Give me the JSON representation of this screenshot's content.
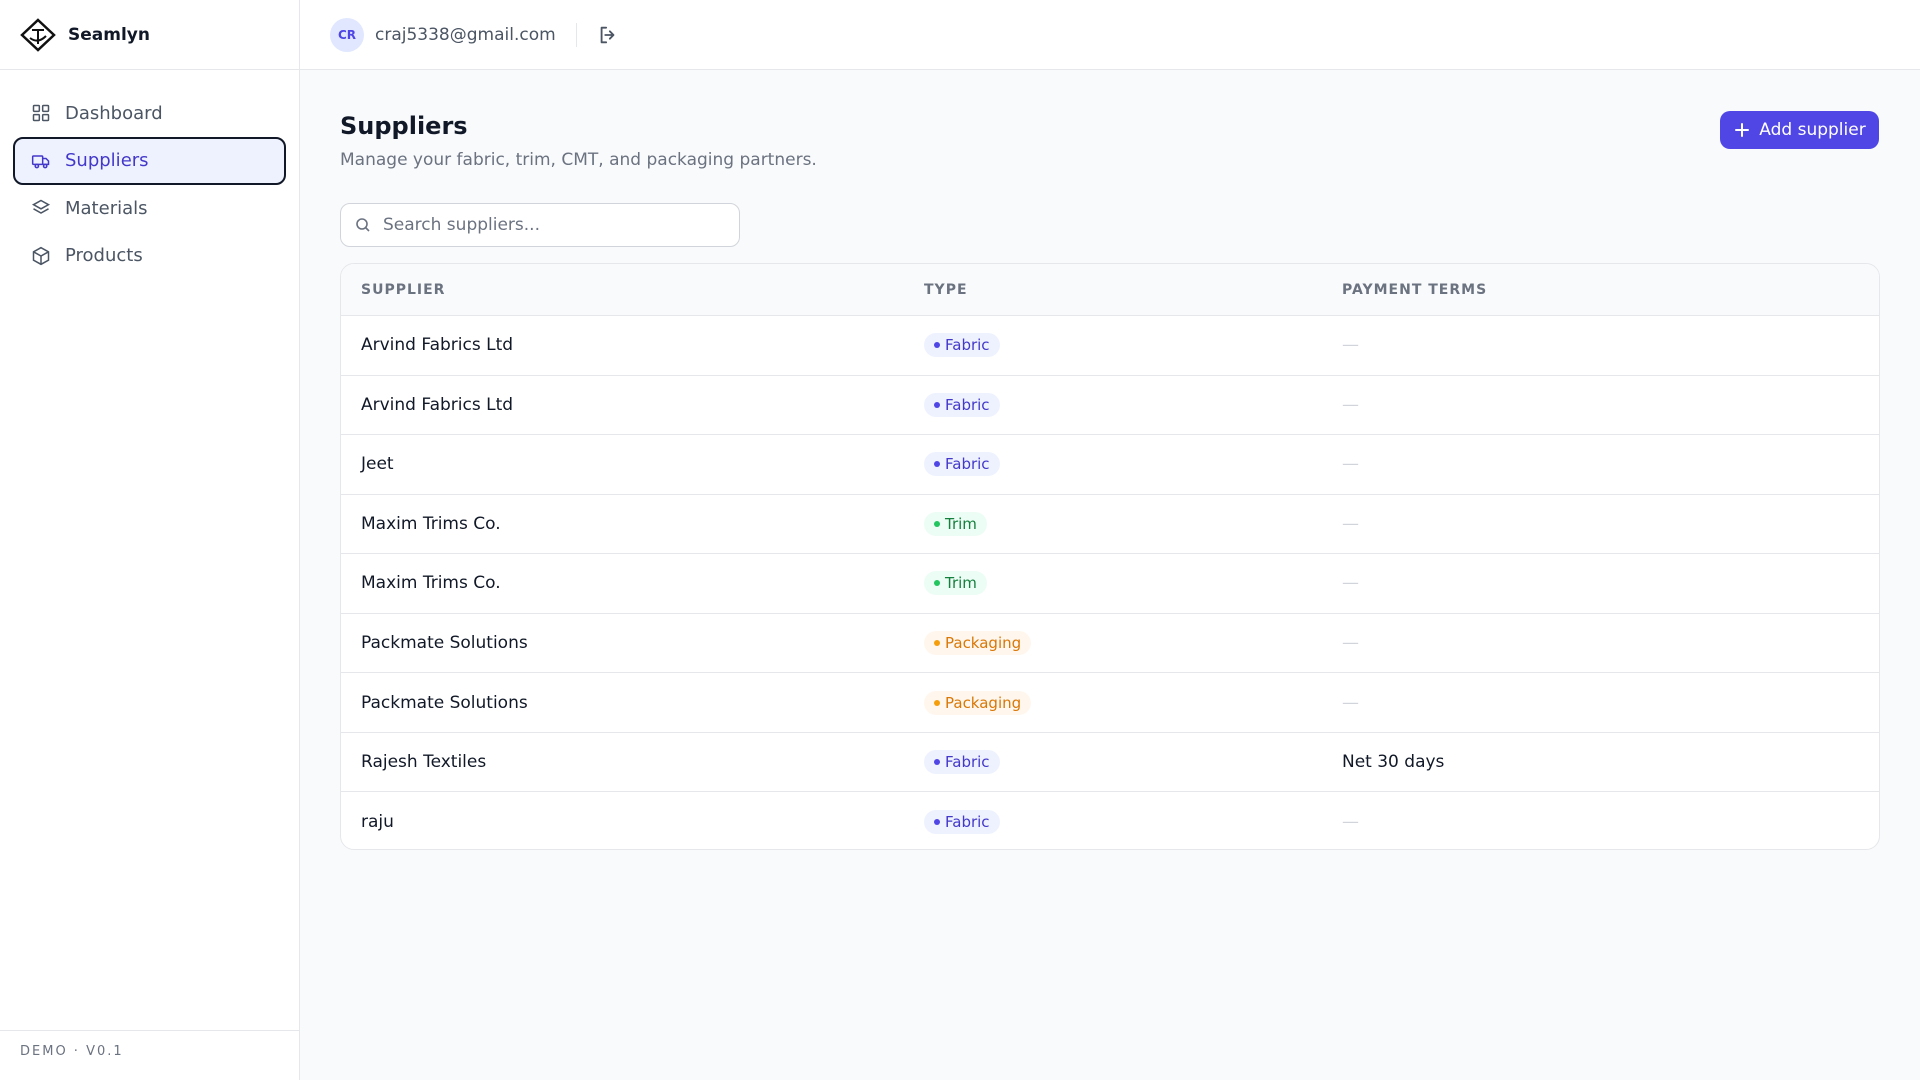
{
  "sidebar": {
    "brand": "Seamlyn",
    "nav": [
      "Dashboard",
      "Suppliers",
      "Materials",
      "Products"
    ],
    "footer": "DEMO · V0.1"
  },
  "header": {
    "avatar": "CR",
    "email": "craj5338@gmail.com"
  },
  "page": {
    "title": "Suppliers",
    "subtitle": "Manage your fabric, trim, CMT, and packaging partners.",
    "button": "Add supplier",
    "search_placeholder": "Search suppliers..."
  },
  "table": {
    "columns": [
      "SUPPLIER",
      "TYPE",
      "PAYMENT TERMS"
    ],
    "rows": [
      [
        "Arvind Fabrics Ltd",
        "Fabric",
        "—"
      ],
      [
        "Arvind Fabrics Ltd",
        "Fabric",
        "—"
      ],
      [
        "Jeet",
        "Fabric",
        "—"
      ],
      [
        "Maxim Trims Co.",
        "Trim",
        "—"
      ],
      [
        "Maxim Trims Co.",
        "Trim",
        "—"
      ],
      [
        "Packmate Solutions",
        "Packaging",
        "—"
      ],
      [
        "Packmate Solutions",
        "Packaging",
        "—"
      ],
      [
        "Rajesh Textiles",
        "Fabric",
        "Net 30 days"
      ],
      [
        "raju",
        "Fabric",
        "—"
      ]
    ]
  }
}
